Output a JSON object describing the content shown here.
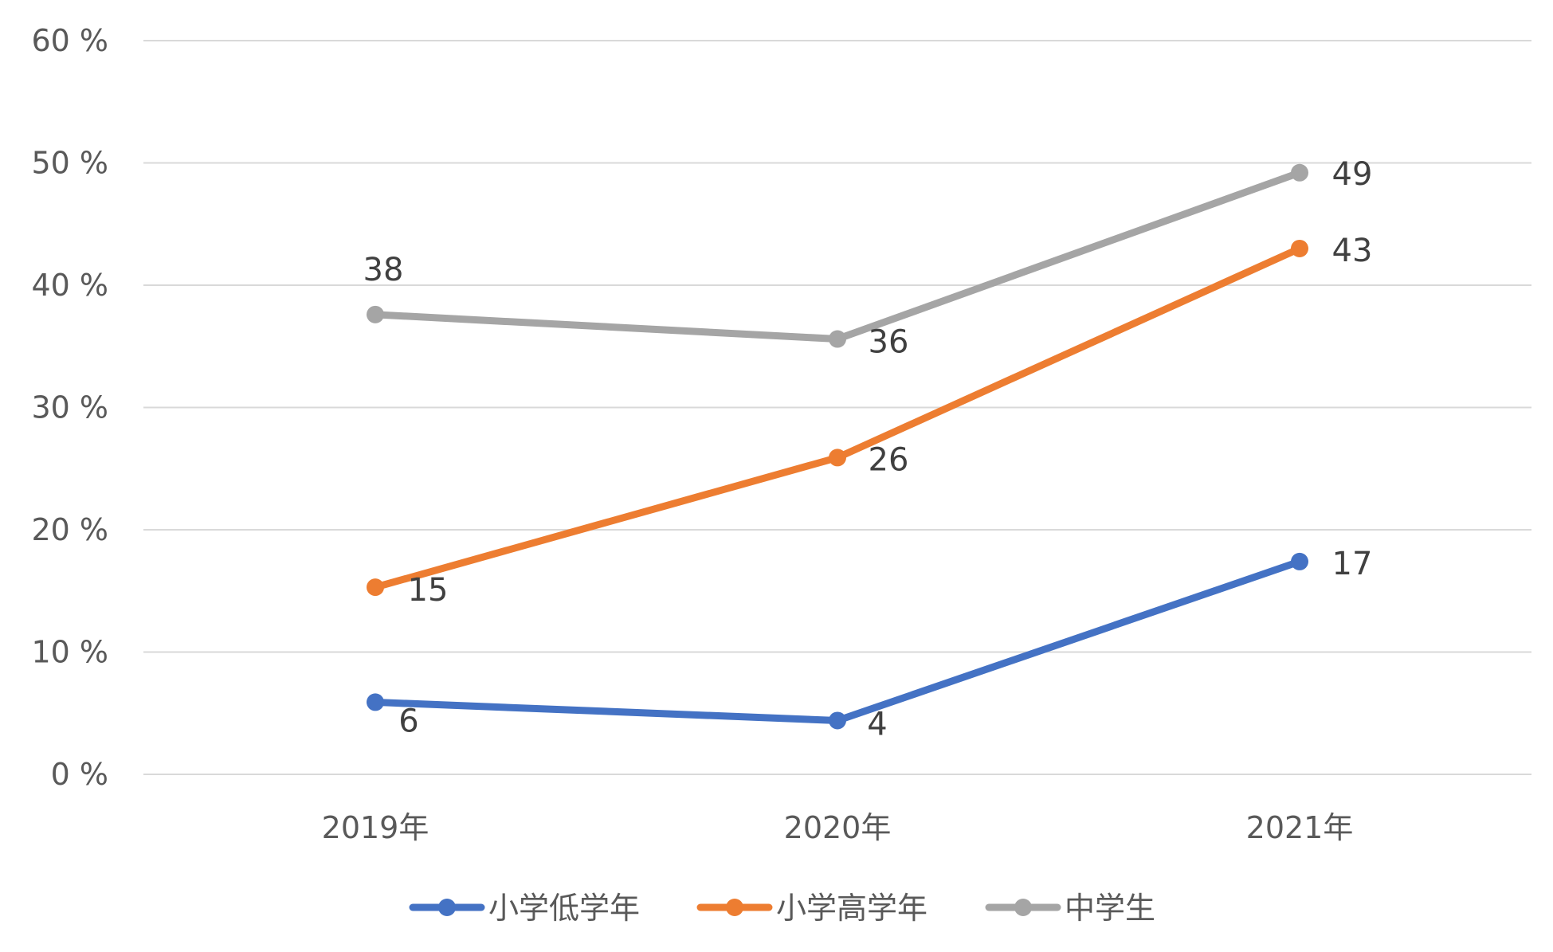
{
  "chart_data": {
    "type": "line",
    "categories": [
      "2019年",
      "2020年",
      "2021年"
    ],
    "series": [
      {
        "name": "小学低学年",
        "values": [
          6,
          4,
          17
        ],
        "plot_values": [
          5.9,
          4.4,
          17.4
        ],
        "color": "#4472c4"
      },
      {
        "name": "小学高学年",
        "values": [
          15,
          26,
          43
        ],
        "plot_values": [
          15.3,
          25.9,
          43.0
        ],
        "color": "#ed7d31"
      },
      {
        "name": "中学生",
        "values": [
          38,
          36,
          49
        ],
        "plot_values": [
          37.6,
          35.6,
          49.2
        ],
        "color": "#a5a5a5"
      }
    ],
    "y_ticks": [
      "0 %",
      "10 %",
      "20 %",
      "30 %",
      "40 %",
      "50 %",
      "60 %"
    ],
    "ylim": [
      0,
      60
    ],
    "grid": true,
    "legend_position": "bottom",
    "title": "",
    "xlabel": "",
    "ylabel": ""
  }
}
